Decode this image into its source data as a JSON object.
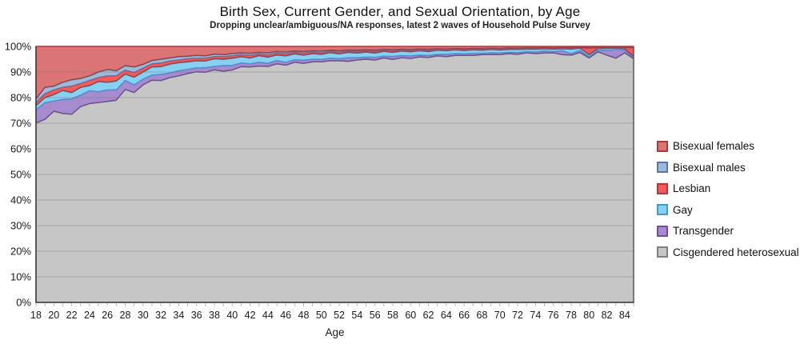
{
  "chart_data": {
    "type": "area",
    "stacked": true,
    "title": "Birth Sex, Current Gender, and Sexual Orientation, by Age",
    "subtitle": "Dropping unclear/ambiguous/NA responses, latest 2 waves of Household Pulse Survey",
    "xlabel": "Age",
    "ylabel": "",
    "ylim": [
      0,
      100
    ],
    "ytick_step": 10,
    "ytick_suffix": "%",
    "grid": true,
    "legend_position": "right",
    "x": [
      18,
      19,
      20,
      21,
      22,
      23,
      24,
      25,
      26,
      27,
      28,
      29,
      30,
      31,
      32,
      33,
      34,
      35,
      36,
      37,
      38,
      39,
      40,
      41,
      42,
      43,
      44,
      45,
      46,
      47,
      48,
      49,
      50,
      51,
      52,
      53,
      54,
      55,
      56,
      57,
      58,
      59,
      60,
      61,
      62,
      63,
      64,
      65,
      66,
      67,
      68,
      69,
      70,
      71,
      72,
      73,
      74,
      75,
      76,
      77,
      78,
      79,
      80,
      81,
      82,
      83,
      84,
      85
    ],
    "xtick_label_step": 2,
    "series_stack_order": "bottom_to_top",
    "series": [
      {
        "name": "Cisgendered heterosexual",
        "fill": "#C6C6C6",
        "stroke": "#7F7F7F",
        "values": [
          70.1,
          71.5,
          74.7,
          73.8,
          73.5,
          76.5,
          77.7,
          78.1,
          78.5,
          79.0,
          83.2,
          82.0,
          85.0,
          86.8,
          86.7,
          87.8,
          88.5,
          89.4,
          90.1,
          89.9,
          90.9,
          90.3,
          90.8,
          92.1,
          92.0,
          92.3,
          92.2,
          93.2,
          92.7,
          93.8,
          93.4,
          94.0,
          94.0,
          94.4,
          94.4,
          94.2,
          94.7,
          95.0,
          94.7,
          95.5,
          94.9,
          95.6,
          95.3,
          95.9,
          95.7,
          96.3,
          96.0,
          96.5,
          96.5,
          96.5,
          96.8,
          96.8,
          96.8,
          97.2,
          96.9,
          97.5,
          97.2,
          97.4,
          97.5,
          96.8,
          96.6,
          97.6,
          95.5,
          97.9,
          96.6,
          95.4,
          97.5,
          95.2
        ]
      },
      {
        "name": "Transgender",
        "fill": "#A78BCF",
        "stroke": "#6E4D9F",
        "values": [
          5.2,
          6.5,
          4.0,
          5.5,
          6.0,
          4.5,
          5.0,
          4.2,
          4.5,
          4.0,
          3.5,
          3.0,
          2.2,
          2.0,
          2.4,
          1.8,
          2.0,
          1.6,
          1.5,
          1.8,
          1.3,
          2.2,
          1.8,
          1.4,
          1.2,
          1.5,
          1.2,
          1.3,
          1.1,
          1.0,
          1.2,
          1.0,
          0.9,
          1.0,
          0.8,
          1.4,
          0.9,
          0.8,
          1.0,
          0.7,
          1.2,
          0.8,
          1.0,
          0.7,
          0.8,
          0.6,
          0.9,
          0.7,
          0.6,
          0.8,
          0.5,
          0.7,
          0.6,
          0.5,
          0.7,
          0.4,
          0.6,
          0.8,
          0.5,
          1.5,
          0.6,
          0.8,
          0.5,
          0.6,
          1.8,
          3.5,
          1.0,
          0.5
        ]
      },
      {
        "name": "Gay",
        "fill": "#87D0F1",
        "stroke": "#3D9BD1",
        "values": [
          1.6,
          2.0,
          2.5,
          3.5,
          2.5,
          3.0,
          2.0,
          4.0,
          3.0,
          3.5,
          2.5,
          3.0,
          2.8,
          3.2,
          3.0,
          3.5,
          3.2,
          3.0,
          2.8,
          2.6,
          3.0,
          2.5,
          2.8,
          2.5,
          2.3,
          2.6,
          2.4,
          2.2,
          2.5,
          2.3,
          2.0,
          2.2,
          2.0,
          2.2,
          1.9,
          2.1,
          1.8,
          2.0,
          1.7,
          1.9,
          1.6,
          1.8,
          1.6,
          1.7,
          1.5,
          1.6,
          1.4,
          1.5,
          1.3,
          1.4,
          1.2,
          1.3,
          1.2,
          1.1,
          1.2,
          1.0,
          1.1,
          0.9,
          1.0,
          0.8,
          1.8,
          0.9,
          0.8,
          0.7,
          0.8,
          0.5,
          0.6,
          0.4
        ]
      },
      {
        "name": "Lesbian",
        "fill": "#F15B5B",
        "stroke": "#C03030",
        "values": [
          1.2,
          1.5,
          1.8,
          1.2,
          2.5,
          1.5,
          2.0,
          1.5,
          2.5,
          2.0,
          1.5,
          1.8,
          1.5,
          1.2,
          1.4,
          1.2,
          1.0,
          1.2,
          0.9,
          1.1,
          0.8,
          1.0,
          0.9,
          0.8,
          1.0,
          0.7,
          0.9,
          0.7,
          0.8,
          0.6,
          0.8,
          0.6,
          0.7,
          0.5,
          0.7,
          0.5,
          0.6,
          0.5,
          0.6,
          0.4,
          0.6,
          0.4,
          0.5,
          0.4,
          0.5,
          0.3,
          0.4,
          0.3,
          0.4,
          0.3,
          0.4,
          0.3,
          0.3,
          0.4,
          0.3,
          0.2,
          0.3,
          0.2,
          0.3,
          0.2,
          0.3,
          0.2,
          2.5,
          0.3,
          0.2,
          0.2,
          0.3,
          3.5
        ]
      },
      {
        "name": "Bisexual males",
        "fill": "#9FB9D9",
        "stroke": "#5578A8",
        "values": [
          1.4,
          2.5,
          1.5,
          2.0,
          2.5,
          2.0,
          1.8,
          2.2,
          2.5,
          2.0,
          1.8,
          2.2,
          1.5,
          1.3,
          1.5,
          1.2,
          1.3,
          1.0,
          1.2,
          0.9,
          1.0,
          0.8,
          0.9,
          0.7,
          0.8,
          0.6,
          0.8,
          0.6,
          0.7,
          0.5,
          0.6,
          0.5,
          0.6,
          0.4,
          0.5,
          0.4,
          0.5,
          0.4,
          0.5,
          0.3,
          0.4,
          0.3,
          0.4,
          0.3,
          0.4,
          0.3,
          0.3,
          0.2,
          0.3,
          0.2,
          0.3,
          0.2,
          0.3,
          0.2,
          0.2,
          0.3,
          0.2,
          0.2,
          0.1,
          0.2,
          0.2,
          0.1,
          0.2,
          0.1,
          0.2,
          0.1,
          0.2,
          0.1
        ]
      },
      {
        "name": "Bisexual females",
        "fill": "#DB7474",
        "stroke": "#A93A3C",
        "values": [
          20.5,
          16.0,
          15.5,
          14.0,
          13.0,
          12.5,
          11.5,
          10.0,
          9.0,
          9.5,
          7.5,
          8.0,
          7.0,
          5.5,
          5.0,
          4.5,
          4.0,
          3.8,
          3.5,
          3.7,
          3.0,
          3.2,
          2.8,
          2.5,
          2.7,
          2.3,
          2.5,
          2.0,
          2.2,
          1.8,
          2.0,
          1.7,
          1.8,
          1.5,
          1.7,
          1.4,
          1.5,
          1.3,
          1.5,
          1.2,
          1.3,
          1.1,
          1.2,
          1.0,
          1.1,
          0.9,
          1.0,
          0.8,
          0.9,
          0.8,
          0.8,
          0.7,
          0.8,
          0.6,
          0.7,
          0.6,
          0.6,
          0.5,
          0.6,
          0.5,
          0.5,
          0.4,
          0.5,
          0.4,
          0.4,
          0.3,
          0.4,
          0.3
        ]
      }
    ],
    "legend_entries_top_to_bottom": [
      "Bisexual females",
      "Bisexual males",
      "Lesbian",
      "Gay",
      "Transgender",
      "Cisgendered heterosexual"
    ]
  },
  "style_colors": {
    "axis": "#3f3f3f",
    "right_border": "#666666",
    "grid": "#6e6e6e",
    "tick": "#b8b8b8",
    "label": "#1a1a1a"
  }
}
